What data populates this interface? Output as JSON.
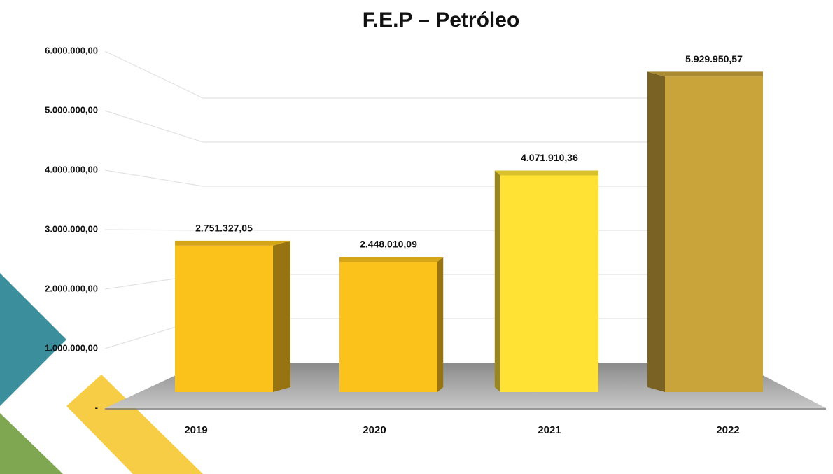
{
  "chart_data": {
    "type": "bar3d",
    "title": "F.E.P – Petróleo",
    "categories": [
      "2019",
      "2020",
      "2021",
      "2022"
    ],
    "values": [
      2751327.05,
      2448010.09,
      4071910.36,
      5929950.57
    ],
    "value_labels": [
      "2.751.327,05",
      "2.448.010,09",
      "4.071.910,36",
      "5.929.950,57"
    ],
    "colors": [
      "#fbc21c",
      "#fbc21c",
      "#ffe234",
      "#c9a43a"
    ],
    "ylim": [
      0,
      6000000
    ],
    "yticks": [
      {
        "value": 0,
        "label": "-"
      },
      {
        "value": 1000000,
        "label": "1.000.000,00"
      },
      {
        "value": 2000000,
        "label": "2.000.000,00"
      },
      {
        "value": 3000000,
        "label": "3.000.000,00"
      },
      {
        "value": 4000000,
        "label": "4.000.000,00"
      },
      {
        "value": 5000000,
        "label": "5.000.000,00"
      },
      {
        "value": 6000000,
        "label": "6.000.000,00"
      }
    ],
    "grid": true
  }
}
